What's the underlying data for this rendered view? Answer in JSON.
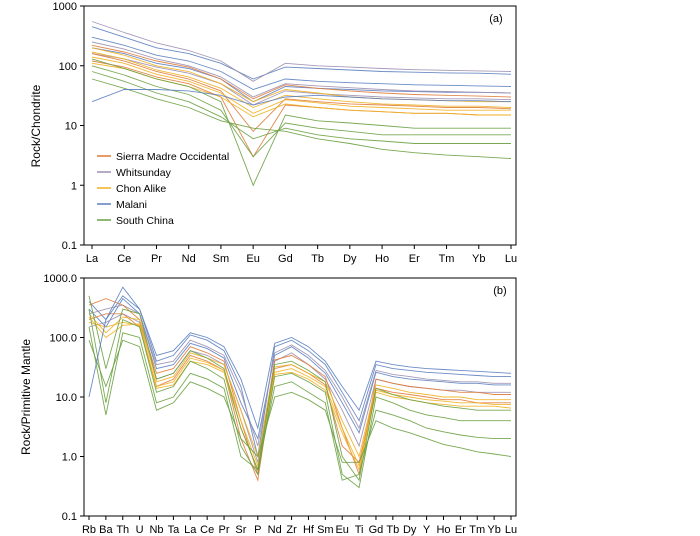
{
  "chart_data": [
    {
      "type": "line",
      "panel_label": "(a)",
      "ylabel": "Rock/Chondrite",
      "yscale": "log",
      "ylim": [
        0.1,
        1000
      ],
      "yticks": [
        "0.1",
        "1",
        "10",
        "100",
        "1000"
      ],
      "categories": [
        "La",
        "Ce",
        "Pr",
        "Nd",
        "Sm",
        "Eu",
        "Gd",
        "Tb",
        "Dy",
        "Ho",
        "Er",
        "Tm",
        "Yb",
        "Lu"
      ],
      "legend": [
        {
          "name": "Sierra Madre Occidental",
          "color": "#e07b39"
        },
        {
          "name": "Whitsunday",
          "color": "#9b8fb0"
        },
        {
          "name": "Chon Alike",
          "color": "#f0b020"
        },
        {
          "name": "Malani",
          "color": "#5b7fc0"
        },
        {
          "name": "South China",
          "color": "#6aa040"
        }
      ],
      "series": [
        {
          "group": "Malani",
          "values": [
            450,
            300,
            200,
            160,
            110,
            60,
            95,
            90,
            85,
            80,
            78,
            76,
            75,
            72
          ]
        },
        {
          "group": "Malani",
          "values": [
            300,
            220,
            150,
            120,
            80,
            40,
            60,
            55,
            52,
            50,
            48,
            47,
            46,
            45
          ]
        },
        {
          "group": "Malani",
          "values": [
            200,
            160,
            110,
            90,
            60,
            25,
            45,
            42,
            40,
            38,
            37,
            36,
            36,
            35
          ]
        },
        {
          "group": "Whitsunday",
          "values": [
            550,
            360,
            240,
            180,
            120,
            55,
            110,
            100,
            95,
            90,
            86,
            84,
            82,
            80
          ]
        },
        {
          "group": "Whitsunday",
          "values": [
            250,
            190,
            130,
            100,
            65,
            30,
            50,
            46,
            43,
            40,
            38,
            37,
            36,
            35
          ]
        },
        {
          "group": "Whitsunday",
          "values": [
            160,
            130,
            95,
            75,
            50,
            22,
            38,
            34,
            32,
            30,
            29,
            28,
            28,
            27
          ]
        },
        {
          "group": "Sierra Madre Occidental",
          "values": [
            220,
            170,
            120,
            95,
            60,
            28,
            48,
            42,
            38,
            35,
            33,
            32,
            31,
            30
          ]
        },
        {
          "group": "Sierra Madre Occidental",
          "values": [
            160,
            120,
            80,
            60,
            38,
            8,
            28,
            25,
            23,
            22,
            21,
            20,
            20,
            19
          ]
        },
        {
          "group": "Sierra Madre Occidental",
          "values": [
            120,
            95,
            65,
            50,
            30,
            3,
            22,
            20,
            18,
            17,
            16,
            16,
            15,
            15
          ]
        },
        {
          "group": "Chon Alike",
          "values": [
            200,
            150,
            100,
            80,
            50,
            25,
            40,
            35,
            30,
            28,
            27,
            26,
            25,
            25
          ]
        },
        {
          "group": "Chon Alike",
          "values": [
            170,
            130,
            85,
            65,
            42,
            20,
            32,
            28,
            25,
            23,
            22,
            21,
            21,
            20
          ]
        },
        {
          "group": "Chon Alike",
          "values": [
            140,
            110,
            72,
            55,
            35,
            16,
            27,
            24,
            21,
            20,
            19,
            18,
            18,
            18
          ]
        },
        {
          "group": "Chon Alike",
          "values": [
            110,
            90,
            60,
            45,
            30,
            14,
            23,
            20,
            18,
            17,
            16,
            16,
            15,
            15
          ]
        },
        {
          "group": "South China",
          "values": [
            130,
            90,
            60,
            45,
            25,
            1,
            15,
            12,
            11,
            10,
            9,
            9,
            9,
            9
          ]
        },
        {
          "group": "South China",
          "values": [
            100,
            70,
            45,
            33,
            18,
            3,
            11,
            9,
            8,
            7,
            7,
            7,
            7,
            7
          ]
        },
        {
          "group": "South China",
          "values": [
            80,
            55,
            35,
            25,
            14,
            6,
            9,
            7,
            6,
            5.5,
            5,
            5,
            5,
            5
          ]
        },
        {
          "group": "South China",
          "values": [
            60,
            42,
            28,
            20,
            12,
            9,
            8,
            6,
            5,
            4,
            3.5,
            3.2,
            3,
            2.8
          ]
        },
        {
          "group": "Malani",
          "values": [
            25,
            40,
            40,
            38,
            32,
            22,
            30,
            32,
            30,
            28,
            27,
            26,
            26,
            25
          ]
        }
      ]
    },
    {
      "type": "line",
      "panel_label": "(b)",
      "ylabel": "Rock/Primitive Mantle",
      "yscale": "log",
      "ylim": [
        0.1,
        1000
      ],
      "yticks": [
        "0.1",
        "1.0",
        "10.0",
        "100.0",
        "1000.0"
      ],
      "categories": [
        "Rb",
        "Ba",
        "Th",
        "U",
        "Nb",
        "Ta",
        "La",
        "Ce",
        "Pr",
        "Sr",
        "P",
        "Nd",
        "Zr",
        "Hf",
        "Sm",
        "Eu",
        "Ti",
        "Gd",
        "Tb",
        "Dy",
        "Y",
        "Ho",
        "Er",
        "Tm",
        "Yb",
        "Lu"
      ],
      "series": [
        {
          "group": "Malani",
          "values": [
            400,
            200,
            700,
            300,
            40,
            50,
            110,
            90,
            60,
            15,
            1,
            70,
            90,
            60,
            35,
            12,
            4,
            35,
            30,
            28,
            26,
            25,
            24,
            23,
            22,
            22
          ]
        },
        {
          "group": "Malani",
          "values": [
            300,
            150,
            450,
            250,
            30,
            35,
            80,
            65,
            45,
            8,
            2,
            50,
            70,
            45,
            25,
            8,
            2.5,
            26,
            22,
            20,
            19,
            18,
            17,
            17,
            16,
            16
          ]
        },
        {
          "group": "Whitsunday",
          "values": [
            250,
            300,
            350,
            250,
            35,
            40,
            90,
            70,
            50,
            12,
            1.5,
            55,
            75,
            50,
            28,
            10,
            3,
            28,
            24,
            22,
            20,
            19,
            18,
            18,
            17,
            17
          ]
        },
        {
          "group": "Whitsunday",
          "values": [
            150,
            180,
            250,
            180,
            20,
            25,
            60,
            50,
            35,
            6,
            0.8,
            40,
            55,
            35,
            20,
            6,
            1.5,
            20,
            17,
            15,
            14,
            13,
            13,
            12,
            12,
            12
          ]
        },
        {
          "group": "Sierra Madre Occidental",
          "values": [
            350,
            450,
            350,
            200,
            25,
            30,
            70,
            55,
            40,
            4,
            0.5,
            42,
            50,
            35,
            22,
            3,
            0.5,
            20,
            17,
            15,
            14,
            13,
            12,
            12,
            11,
            11
          ]
        },
        {
          "group": "Sierra Madre Occidental",
          "values": [
            200,
            250,
            250,
            150,
            15,
            20,
            50,
            40,
            28,
            2,
            0.4,
            30,
            35,
            25,
            16,
            1.5,
            0.8,
            14,
            12,
            11,
            10,
            9,
            9,
            8,
            8,
            8
          ]
        },
        {
          "group": "Chon Alike",
          "values": [
            250,
            120,
            220,
            200,
            18,
            22,
            55,
            45,
            35,
            6,
            1,
            32,
            35,
            25,
            18,
            4,
            1,
            16,
            14,
            12,
            11,
            10,
            10,
            9,
            9,
            9
          ]
        },
        {
          "group": "Chon Alike",
          "values": [
            180,
            150,
            180,
            160,
            15,
            18,
            45,
            38,
            28,
            4,
            0.7,
            26,
            30,
            22,
            15,
            3,
            0.7,
            13,
            11,
            10,
            9,
            8.5,
            8,
            8,
            7.5,
            7.5
          ]
        },
        {
          "group": "Chon Alike",
          "values": [
            220,
            100,
            160,
            170,
            14,
            16,
            40,
            35,
            26,
            3,
            0.6,
            24,
            26,
            20,
            13,
            2.5,
            0.6,
            12,
            10,
            9,
            8,
            7.5,
            7,
            7,
            7,
            6.5
          ]
        },
        {
          "group": "South China",
          "values": [
            500,
            30,
            300,
            250,
            20,
            25,
            60,
            45,
            30,
            3,
            0.6,
            35,
            40,
            28,
            18,
            1,
            0.4,
            14,
            11,
            9,
            8,
            7,
            6.5,
            6,
            6,
            6
          ]
        },
        {
          "group": "South China",
          "values": [
            300,
            8,
            200,
            150,
            12,
            15,
            40,
            30,
            20,
            1.5,
            0.5,
            22,
            25,
            18,
            12,
            0.5,
            0.3,
            10,
            8,
            6,
            5,
            4.5,
            4,
            4,
            4,
            4
          ]
        },
        {
          "group": "South China",
          "values": [
            150,
            5,
            120,
            100,
            8,
            10,
            25,
            20,
            14,
            1,
            0.6,
            15,
            18,
            12,
            8,
            0.4,
            0.5,
            6,
            5,
            4,
            3,
            2.6,
            2.3,
            2.1,
            2,
            2
          ]
        },
        {
          "group": "South China",
          "values": [
            90,
            15,
            90,
            70,
            6,
            8,
            18,
            14,
            10,
            2,
            1,
            10,
            12,
            9,
            6,
            0.8,
            0.8,
            4,
            3,
            2.5,
            2,
            1.6,
            1.4,
            1.2,
            1.1,
            1
          ]
        },
        {
          "group": "Malani",
          "values": [
            10,
            200,
            500,
            300,
            50,
            60,
            120,
            100,
            70,
            20,
            3,
            80,
            100,
            70,
            40,
            15,
            6,
            40,
            35,
            32,
            30,
            29,
            28,
            27,
            26,
            25
          ]
        }
      ]
    }
  ]
}
